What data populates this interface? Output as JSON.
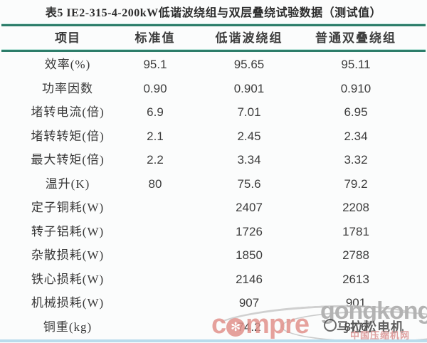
{
  "page": {
    "title": "表5  IE2-315-4-200kW低谐波绕组与双层叠绕试验数据（测试值）"
  },
  "table": {
    "columns": [
      "项目",
      "标准值",
      "低谐波绕组",
      "普通双叠绕组"
    ],
    "rows": [
      {
        "label": "效率(%)",
        "standard": "95.1",
        "low_harmonic": "95.65",
        "double_lap": "95.11"
      },
      {
        "label": "功率因数",
        "standard": "0.90",
        "low_harmonic": "0.901",
        "double_lap": "0.910"
      },
      {
        "label": "堵转电流(倍)",
        "standard": "6.9",
        "low_harmonic": "7.01",
        "double_lap": "6.95"
      },
      {
        "label": "堵转转矩(倍)",
        "standard": "2.1",
        "low_harmonic": "2.45",
        "double_lap": "2.34"
      },
      {
        "label": "最大转矩(倍)",
        "standard": "2.2",
        "low_harmonic": "3.34",
        "double_lap": "3.32"
      },
      {
        "label": "温升(K)",
        "standard": "80",
        "low_harmonic": "75.6",
        "double_lap": "79.2"
      },
      {
        "label": "定子铜耗(W)",
        "standard": "",
        "low_harmonic": "2407",
        "double_lap": "2208"
      },
      {
        "label": "转子铝耗(W)",
        "standard": "",
        "low_harmonic": "1726",
        "double_lap": "1781"
      },
      {
        "label": "杂散损耗(W)",
        "standard": "",
        "low_harmonic": "1850",
        "double_lap": "2788"
      },
      {
        "label": "铁心损耗(W)",
        "standard": "",
        "low_harmonic": "2146",
        "double_lap": "2613"
      },
      {
        "label": "机械损耗(W)",
        "standard": "",
        "low_harmonic": "907",
        "double_lap": "901"
      },
      {
        "label": "铜重(kg)",
        "standard": "",
        "low_harmonic": "74.2",
        "double_lap": "87.6"
      }
    ]
  },
  "watermarks": {
    "gongkong": "gongkong",
    "compre_prefix": "c",
    "compre_suffix": "mpre",
    "fan_glyph": "✻",
    "marathon": "马拉松电机",
    "site": "中国压缩机网"
  },
  "colors": {
    "rule_teal": "#2d7d6a",
    "rule_bottom_blue": "#b9dcec",
    "watermark_gray": "#b3b3b3",
    "watermark_red": "#e2928c",
    "watermark_pink": "#dfa0a0",
    "text": "#3a3a3a"
  }
}
